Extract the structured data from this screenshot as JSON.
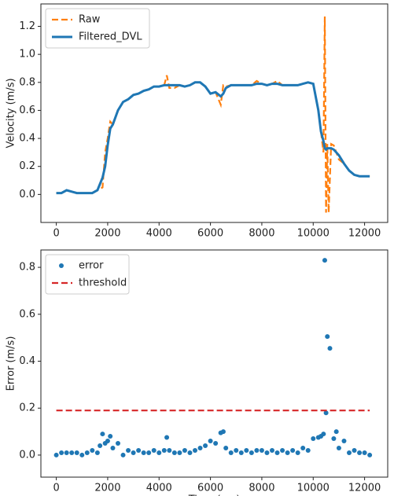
{
  "chart_data": [
    {
      "type": "line",
      "ylabel": "Velocity (m/s)",
      "x": [
        0,
        200,
        400,
        600,
        800,
        1000,
        1200,
        1400,
        1600,
        1800,
        1900,
        2000,
        2100,
        2200,
        2400,
        2600,
        2800,
        3000,
        3200,
        3400,
        3600,
        3800,
        4000,
        4200,
        4300,
        4400,
        4600,
        4800,
        5000,
        5200,
        5400,
        5600,
        5800,
        6000,
        6200,
        6400,
        6500,
        6600,
        6800,
        7000,
        7200,
        7400,
        7600,
        7800,
        8000,
        8200,
        8400,
        8600,
        8800,
        9000,
        9200,
        9400,
        9600,
        9800,
        10000,
        10200,
        10300,
        10400,
        10450,
        10500,
        10550,
        10600,
        10700,
        10800,
        11000,
        11200,
        11400,
        11600,
        11800,
        12000,
        12200
      ],
      "series": [
        {
          "name": "Raw",
          "color": "#ff7f0e",
          "dash": true,
          "values": [
            0.01,
            0.01,
            0.03,
            0.02,
            0.01,
            0.01,
            0.01,
            0.01,
            0.03,
            0.05,
            0.3,
            0.4,
            0.52,
            0.5,
            0.6,
            0.66,
            0.68,
            0.71,
            0.72,
            0.74,
            0.75,
            0.77,
            0.77,
            0.78,
            0.85,
            0.76,
            0.76,
            0.78,
            0.77,
            0.78,
            0.8,
            0.8,
            0.77,
            0.72,
            0.73,
            0.64,
            0.78,
            0.77,
            0.78,
            0.78,
            0.78,
            0.78,
            0.78,
            0.81,
            0.79,
            0.78,
            0.79,
            0.81,
            0.78,
            0.78,
            0.78,
            0.78,
            0.79,
            0.8,
            0.79,
            0.6,
            0.45,
            0.3,
            1.27,
            -0.13,
            0.36,
            -0.13,
            0.36,
            0.35,
            0.25,
            0.22,
            0.17,
            0.14,
            0.13,
            0.13,
            0.13
          ]
        },
        {
          "name": "Filtered_DVL",
          "color": "#1f77b4",
          "dash": false,
          "values": [
            0.01,
            0.01,
            0.03,
            0.02,
            0.01,
            0.01,
            0.01,
            0.01,
            0.03,
            0.12,
            0.2,
            0.35,
            0.47,
            0.5,
            0.6,
            0.66,
            0.68,
            0.71,
            0.72,
            0.74,
            0.75,
            0.77,
            0.77,
            0.78,
            0.78,
            0.78,
            0.78,
            0.78,
            0.77,
            0.78,
            0.8,
            0.8,
            0.77,
            0.72,
            0.73,
            0.7,
            0.72,
            0.76,
            0.78,
            0.78,
            0.78,
            0.78,
            0.78,
            0.79,
            0.79,
            0.78,
            0.79,
            0.79,
            0.78,
            0.78,
            0.78,
            0.78,
            0.79,
            0.8,
            0.79,
            0.6,
            0.45,
            0.38,
            0.33,
            0.32,
            0.33,
            0.33,
            0.33,
            0.32,
            0.28,
            0.22,
            0.17,
            0.14,
            0.13,
            0.13,
            0.13
          ]
        }
      ],
      "xlim": [
        -600,
        12900
      ],
      "xticks": [
        0,
        2000,
        4000,
        6000,
        8000,
        10000,
        12000
      ],
      "ylim": [
        -0.2,
        1.36
      ],
      "yticks": [
        {
          "value": 0,
          "label": "0.0"
        },
        0.2,
        0.4,
        0.6,
        0.8,
        {
          "value": 1,
          "label": "1.0"
        },
        1.2
      ],
      "legend": "upper-left"
    },
    {
      "type": "scatter",
      "ylabel": "Error (m/s)",
      "xlabel": "Time (ms)",
      "series": [
        {
          "name": "error",
          "color": "#1f77b4",
          "kind": "scatter",
          "x": [
            0,
            200,
            400,
            600,
            800,
            1000,
            1200,
            1400,
            1600,
            1700,
            1800,
            1900,
            2000,
            2100,
            2200,
            2400,
            2600,
            2800,
            3000,
            3200,
            3400,
            3600,
            3800,
            4000,
            4200,
            4300,
            4400,
            4600,
            4800,
            5000,
            5200,
            5400,
            5600,
            5800,
            6000,
            6200,
            6400,
            6500,
            6600,
            6800,
            7000,
            7200,
            7400,
            7600,
            7800,
            8000,
            8200,
            8400,
            8600,
            8800,
            9000,
            9200,
            9400,
            9600,
            9800,
            10000,
            10200,
            10300,
            10400,
            10450,
            10500,
            10550,
            10650,
            10800,
            10900,
            11000,
            11200,
            11400,
            11600,
            11800,
            12000,
            12200
          ],
          "values": [
            0.0,
            0.01,
            0.01,
            0.01,
            0.01,
            0.0,
            0.01,
            0.02,
            0.01,
            0.04,
            0.09,
            0.05,
            0.06,
            0.08,
            0.03,
            0.05,
            0.0,
            0.02,
            0.01,
            0.02,
            0.01,
            0.01,
            0.02,
            0.01,
            0.02,
            0.075,
            0.02,
            0.01,
            0.01,
            0.02,
            0.01,
            0.02,
            0.03,
            0.04,
            0.06,
            0.05,
            0.095,
            0.1,
            0.03,
            0.01,
            0.02,
            0.01,
            0.02,
            0.01,
            0.02,
            0.02,
            0.01,
            0.02,
            0.01,
            0.02,
            0.01,
            0.02,
            0.01,
            0.03,
            0.02,
            0.07,
            0.075,
            0.08,
            0.09,
            0.83,
            0.18,
            0.505,
            0.455,
            0.07,
            0.1,
            0.03,
            0.06,
            0.01,
            0.02,
            0.01,
            0.01,
            0.0
          ]
        },
        {
          "name": "threshold",
          "color": "#d62728",
          "kind": "line",
          "dash": true,
          "x": [
            0,
            12200
          ],
          "values": [
            0.19,
            0.19
          ]
        }
      ],
      "xlim": [
        -600,
        12900
      ],
      "xticks": [
        0,
        2000,
        4000,
        6000,
        8000,
        10000,
        12000
      ],
      "ylim": [
        -0.094,
        0.874
      ],
      "yticks": [
        {
          "value": 0,
          "label": "0.0"
        },
        0.2,
        0.4,
        0.6,
        0.8
      ],
      "legend": "upper-left"
    }
  ]
}
